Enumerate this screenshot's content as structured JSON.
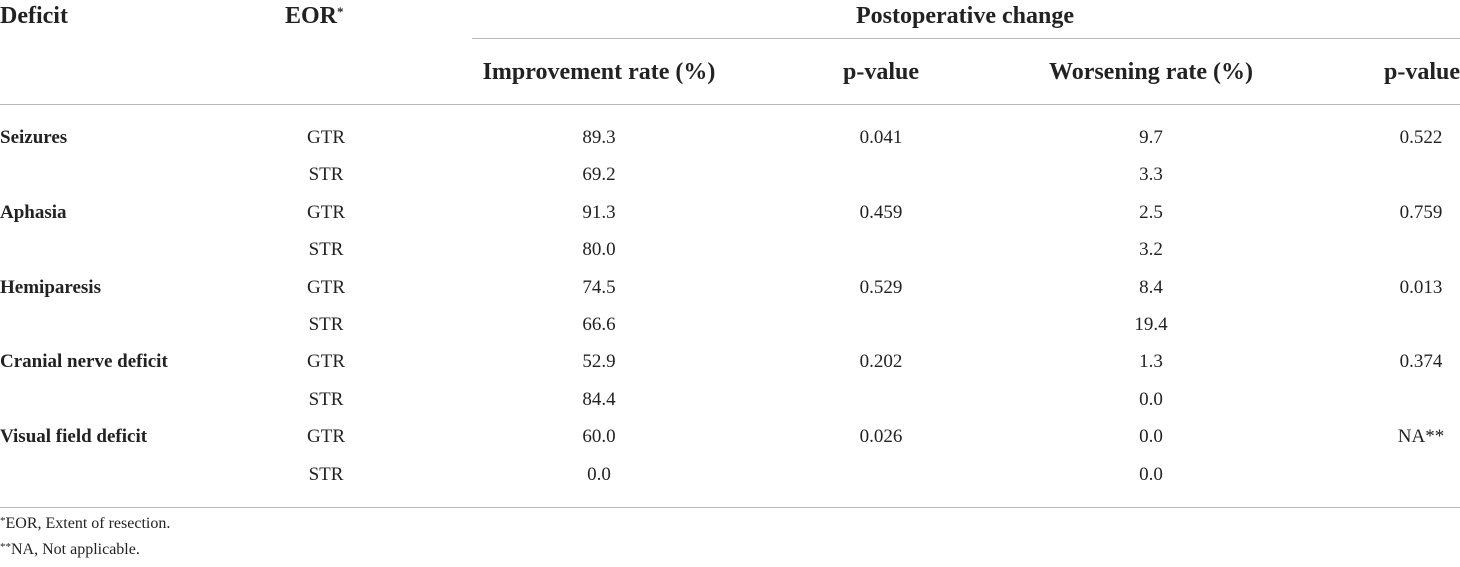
{
  "headers": {
    "deficit": "Deficit",
    "eor": "EOR",
    "eor_mark": "*",
    "postoperative_change": "Postoperative change",
    "improvement_rate": "Improvement rate (%)",
    "p_value_1": "p-value",
    "worsening_rate": "Worsening rate (%)",
    "p_value_2": "p-value"
  },
  "rows": [
    {
      "deficit": "Seizures",
      "eor": "GTR",
      "improvement": "89.3",
      "p1": "0.041",
      "worsening": "9.7",
      "p2": "0.522"
    },
    {
      "deficit": "",
      "eor": "STR",
      "improvement": "69.2",
      "p1": "",
      "worsening": "3.3",
      "p2": ""
    },
    {
      "deficit": "Aphasia",
      "eor": "GTR",
      "improvement": "91.3",
      "p1": "0.459",
      "worsening": "2.5",
      "p2": "0.759"
    },
    {
      "deficit": "",
      "eor": "STR",
      "improvement": "80.0",
      "p1": "",
      "worsening": "3.2",
      "p2": ""
    },
    {
      "deficit": "Hemiparesis",
      "eor": "GTR",
      "improvement": "74.5",
      "p1": "0.529",
      "worsening": "8.4",
      "p2": "0.013"
    },
    {
      "deficit": "",
      "eor": "STR",
      "improvement": "66.6",
      "p1": "",
      "worsening": "19.4",
      "p2": ""
    },
    {
      "deficit": "Cranial nerve deficit",
      "eor": "GTR",
      "improvement": "52.9",
      "p1": "0.202",
      "worsening": "1.3",
      "p2": "0.374"
    },
    {
      "deficit": "",
      "eor": "STR",
      "improvement": "84.4",
      "p1": "",
      "worsening": "0.0",
      "p2": ""
    },
    {
      "deficit": "Visual field deficit",
      "eor": "GTR",
      "improvement": "60.0",
      "p1": "0.026",
      "worsening": "0.0",
      "p2": "NA**"
    },
    {
      "deficit": "",
      "eor": "STR",
      "improvement": "0.0",
      "p1": "",
      "worsening": "0.0",
      "p2": ""
    }
  ],
  "footnotes": [
    {
      "mark": "*",
      "text": "EOR, Extent of resection."
    },
    {
      "mark": "**",
      "text": "NA, Not applicable."
    }
  ]
}
